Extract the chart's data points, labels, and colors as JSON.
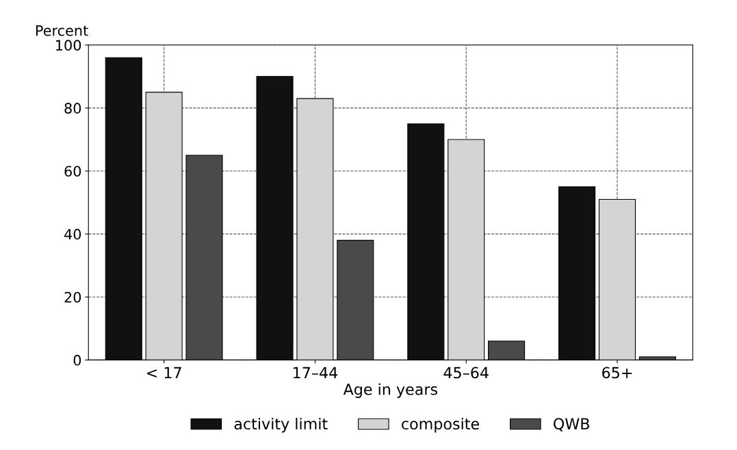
{
  "chart_data": {
    "type": "bar",
    "ylabel": "Percent",
    "xlabel": "Age in years",
    "categories": [
      "< 17",
      "17–44",
      "45–64",
      "65+"
    ],
    "series": [
      {
        "name": "activity limit",
        "color": "#111111",
        "values": [
          96,
          90,
          75,
          55
        ]
      },
      {
        "name": "composite",
        "color": "#d4d4d4",
        "values": [
          85,
          83,
          70,
          51
        ]
      },
      {
        "name": "QWB",
        "color": "#4a4a4a",
        "values": [
          65,
          38,
          6,
          1
        ]
      }
    ],
    "ylim": [
      0,
      100
    ],
    "yticks": [
      0,
      20,
      40,
      60,
      80,
      100
    ],
    "grid": true,
    "legend": "bottom"
  }
}
